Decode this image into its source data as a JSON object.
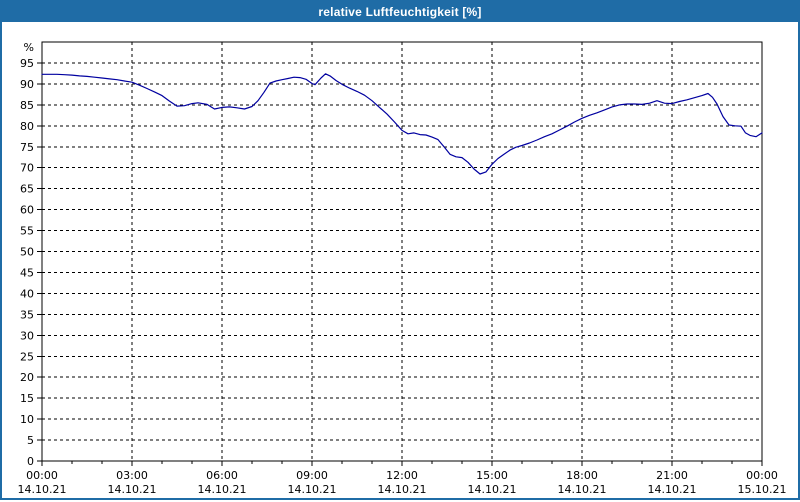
{
  "window": {
    "title": "relative Luftfeuchtigkeit [%]"
  },
  "colors": {
    "titlebar": "#1F6CA6",
    "window_border": "#1F6CA6",
    "line": "#0000A0",
    "grid": "#000000",
    "plot_border": "#000000",
    "background": "#FFFFFF",
    "tick_text": "#000000"
  },
  "chart_data": {
    "type": "line",
    "title": "relative Luftfeuchtigkeit [%]",
    "xlabel": "",
    "ylabel": "%",
    "xlim": [
      0,
      24
    ],
    "ylim": [
      0,
      100
    ],
    "grid": true,
    "legend": "none",
    "x_unit": "hours since 14.10.21 00:00",
    "x_minor_step_hours": 1,
    "y_ticks": [
      0,
      5,
      10,
      15,
      20,
      25,
      30,
      35,
      40,
      45,
      50,
      55,
      60,
      65,
      70,
      75,
      80,
      85,
      90,
      95
    ],
    "x_ticks": [
      {
        "hour": 0,
        "time": "00:00",
        "date": "14.10.21"
      },
      {
        "hour": 3,
        "time": "03:00",
        "date": "14.10.21"
      },
      {
        "hour": 6,
        "time": "06:00",
        "date": "14.10.21"
      },
      {
        "hour": 9,
        "time": "09:00",
        "date": "14.10.21"
      },
      {
        "hour": 12,
        "time": "12:00",
        "date": "14.10.21"
      },
      {
        "hour": 15,
        "time": "15:00",
        "date": "14.10.21"
      },
      {
        "hour": 18,
        "time": "18:00",
        "date": "14.10.21"
      },
      {
        "hour": 21,
        "time": "21:00",
        "date": "14.10.21"
      },
      {
        "hour": 24,
        "time": "00:00",
        "date": "15.10.21"
      }
    ],
    "series": [
      {
        "name": "relative Luftfeuchtigkeit",
        "points": [
          [
            0.0,
            92.3
          ],
          [
            0.25,
            92.3
          ],
          [
            0.5,
            92.3
          ],
          [
            0.75,
            92.2
          ],
          [
            1.0,
            92.1
          ],
          [
            1.25,
            91.9
          ],
          [
            1.5,
            91.8
          ],
          [
            1.75,
            91.6
          ],
          [
            2.0,
            91.4
          ],
          [
            2.25,
            91.2
          ],
          [
            2.5,
            91.0
          ],
          [
            2.75,
            90.7
          ],
          [
            3.0,
            90.4
          ],
          [
            3.25,
            89.7
          ],
          [
            3.5,
            88.9
          ],
          [
            3.75,
            88.1
          ],
          [
            4.0,
            87.2
          ],
          [
            4.25,
            85.9
          ],
          [
            4.5,
            84.7
          ],
          [
            4.75,
            84.8
          ],
          [
            5.0,
            85.3
          ],
          [
            5.2,
            85.5
          ],
          [
            5.5,
            85.1
          ],
          [
            5.75,
            84.0
          ],
          [
            6.0,
            84.4
          ],
          [
            6.25,
            84.5
          ],
          [
            6.5,
            84.3
          ],
          [
            6.75,
            84.0
          ],
          [
            7.0,
            84.6
          ],
          [
            7.2,
            86.0
          ],
          [
            7.4,
            88.0
          ],
          [
            7.6,
            90.2
          ],
          [
            7.8,
            90.7
          ],
          [
            8.0,
            91.0
          ],
          [
            8.2,
            91.3
          ],
          [
            8.4,
            91.6
          ],
          [
            8.6,
            91.5
          ],
          [
            8.8,
            91.1
          ],
          [
            9.0,
            90.1
          ],
          [
            9.1,
            89.8
          ],
          [
            9.3,
            91.4
          ],
          [
            9.45,
            92.4
          ],
          [
            9.6,
            91.9
          ],
          [
            9.8,
            90.8
          ],
          [
            10.0,
            89.9
          ],
          [
            10.25,
            89.0
          ],
          [
            10.5,
            88.2
          ],
          [
            10.75,
            87.3
          ],
          [
            11.0,
            86.0
          ],
          [
            11.25,
            84.4
          ],
          [
            11.5,
            82.8
          ],
          [
            11.75,
            80.9
          ],
          [
            12.0,
            78.9
          ],
          [
            12.2,
            78.1
          ],
          [
            12.4,
            78.3
          ],
          [
            12.6,
            77.9
          ],
          [
            12.8,
            77.8
          ],
          [
            13.0,
            77.3
          ],
          [
            13.2,
            76.7
          ],
          [
            13.4,
            75.0
          ],
          [
            13.6,
            73.2
          ],
          [
            13.8,
            72.6
          ],
          [
            14.0,
            72.4
          ],
          [
            14.2,
            71.3
          ],
          [
            14.4,
            69.7
          ],
          [
            14.6,
            68.5
          ],
          [
            14.8,
            69.0
          ],
          [
            15.0,
            70.8
          ],
          [
            15.2,
            72.2
          ],
          [
            15.4,
            73.2
          ],
          [
            15.6,
            74.2
          ],
          [
            15.8,
            74.9
          ],
          [
            16.0,
            75.3
          ],
          [
            16.25,
            75.9
          ],
          [
            16.5,
            76.6
          ],
          [
            16.75,
            77.4
          ],
          [
            17.0,
            78.1
          ],
          [
            17.25,
            79.0
          ],
          [
            17.5,
            79.9
          ],
          [
            17.75,
            80.9
          ],
          [
            18.0,
            81.8
          ],
          [
            18.25,
            82.5
          ],
          [
            18.5,
            83.1
          ],
          [
            18.75,
            83.8
          ],
          [
            19.0,
            84.5
          ],
          [
            19.25,
            85.0
          ],
          [
            19.5,
            85.2
          ],
          [
            19.75,
            85.2
          ],
          [
            20.0,
            85.1
          ],
          [
            20.25,
            85.4
          ],
          [
            20.5,
            86.0
          ],
          [
            20.75,
            85.4
          ],
          [
            21.0,
            85.3
          ],
          [
            21.25,
            85.8
          ],
          [
            21.5,
            86.2
          ],
          [
            21.75,
            86.7
          ],
          [
            22.0,
            87.2
          ],
          [
            22.2,
            87.7
          ],
          [
            22.35,
            86.8
          ],
          [
            22.5,
            85.2
          ],
          [
            22.7,
            82.2
          ],
          [
            22.9,
            80.2
          ],
          [
            23.1,
            80.0
          ],
          [
            23.3,
            79.9
          ],
          [
            23.45,
            78.3
          ],
          [
            23.6,
            77.7
          ],
          [
            23.8,
            77.4
          ],
          [
            24.0,
            78.3
          ]
        ]
      }
    ]
  }
}
